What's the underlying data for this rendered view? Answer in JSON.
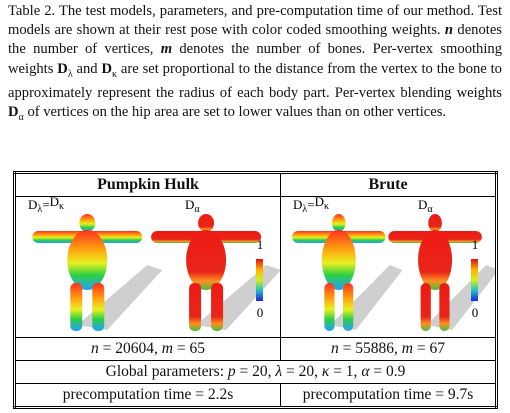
{
  "caption": [
    "Table 2. The test models, parameters, and pre-computation time of our method. Test models are shown at their rest pose with color coded smoothing weights. ",
    "n",
    " denotes the number of vertices, ",
    "m",
    " denotes the number of bones. Per-vertex smoothing weights ",
    "D",
    "λ",
    " and ",
    "D",
    "κ",
    " are set proportional to the distance from the vertex to the bone to approximately represent the radius of each body part. Per-vertex blending weights ",
    "D",
    "α",
    " of vertices on the hip area are set to lower values than on other vertices."
  ],
  "table": {
    "panels": [
      {
        "title": "Pumpkin Hulk",
        "smooth_label": [
          "D",
          "λ",
          "=",
          "D",
          "κ"
        ],
        "blend_label": [
          "D",
          "α"
        ],
        "colorbar": [
          "1",
          "0"
        ],
        "stats": [
          "n",
          " = 20604, ",
          "m",
          " = 65"
        ],
        "time": "precomputation time = 2.2s"
      },
      {
        "title": "Brute",
        "smooth_label": [
          "D",
          "λ",
          "=",
          "D",
          "κ"
        ],
        "blend_label": [
          "D",
          "α"
        ],
        "colorbar": [
          "1",
          "0"
        ],
        "stats": [
          "n",
          " = 55886, ",
          "m",
          " = 67"
        ],
        "time": "precomputation time = 9.7s"
      }
    ],
    "global": [
      "Global parameters: ",
      "p",
      " = 20, ",
      "λ",
      " = 20, ",
      "κ",
      " = 1, ",
      "α",
      " = 0.9"
    ]
  }
}
